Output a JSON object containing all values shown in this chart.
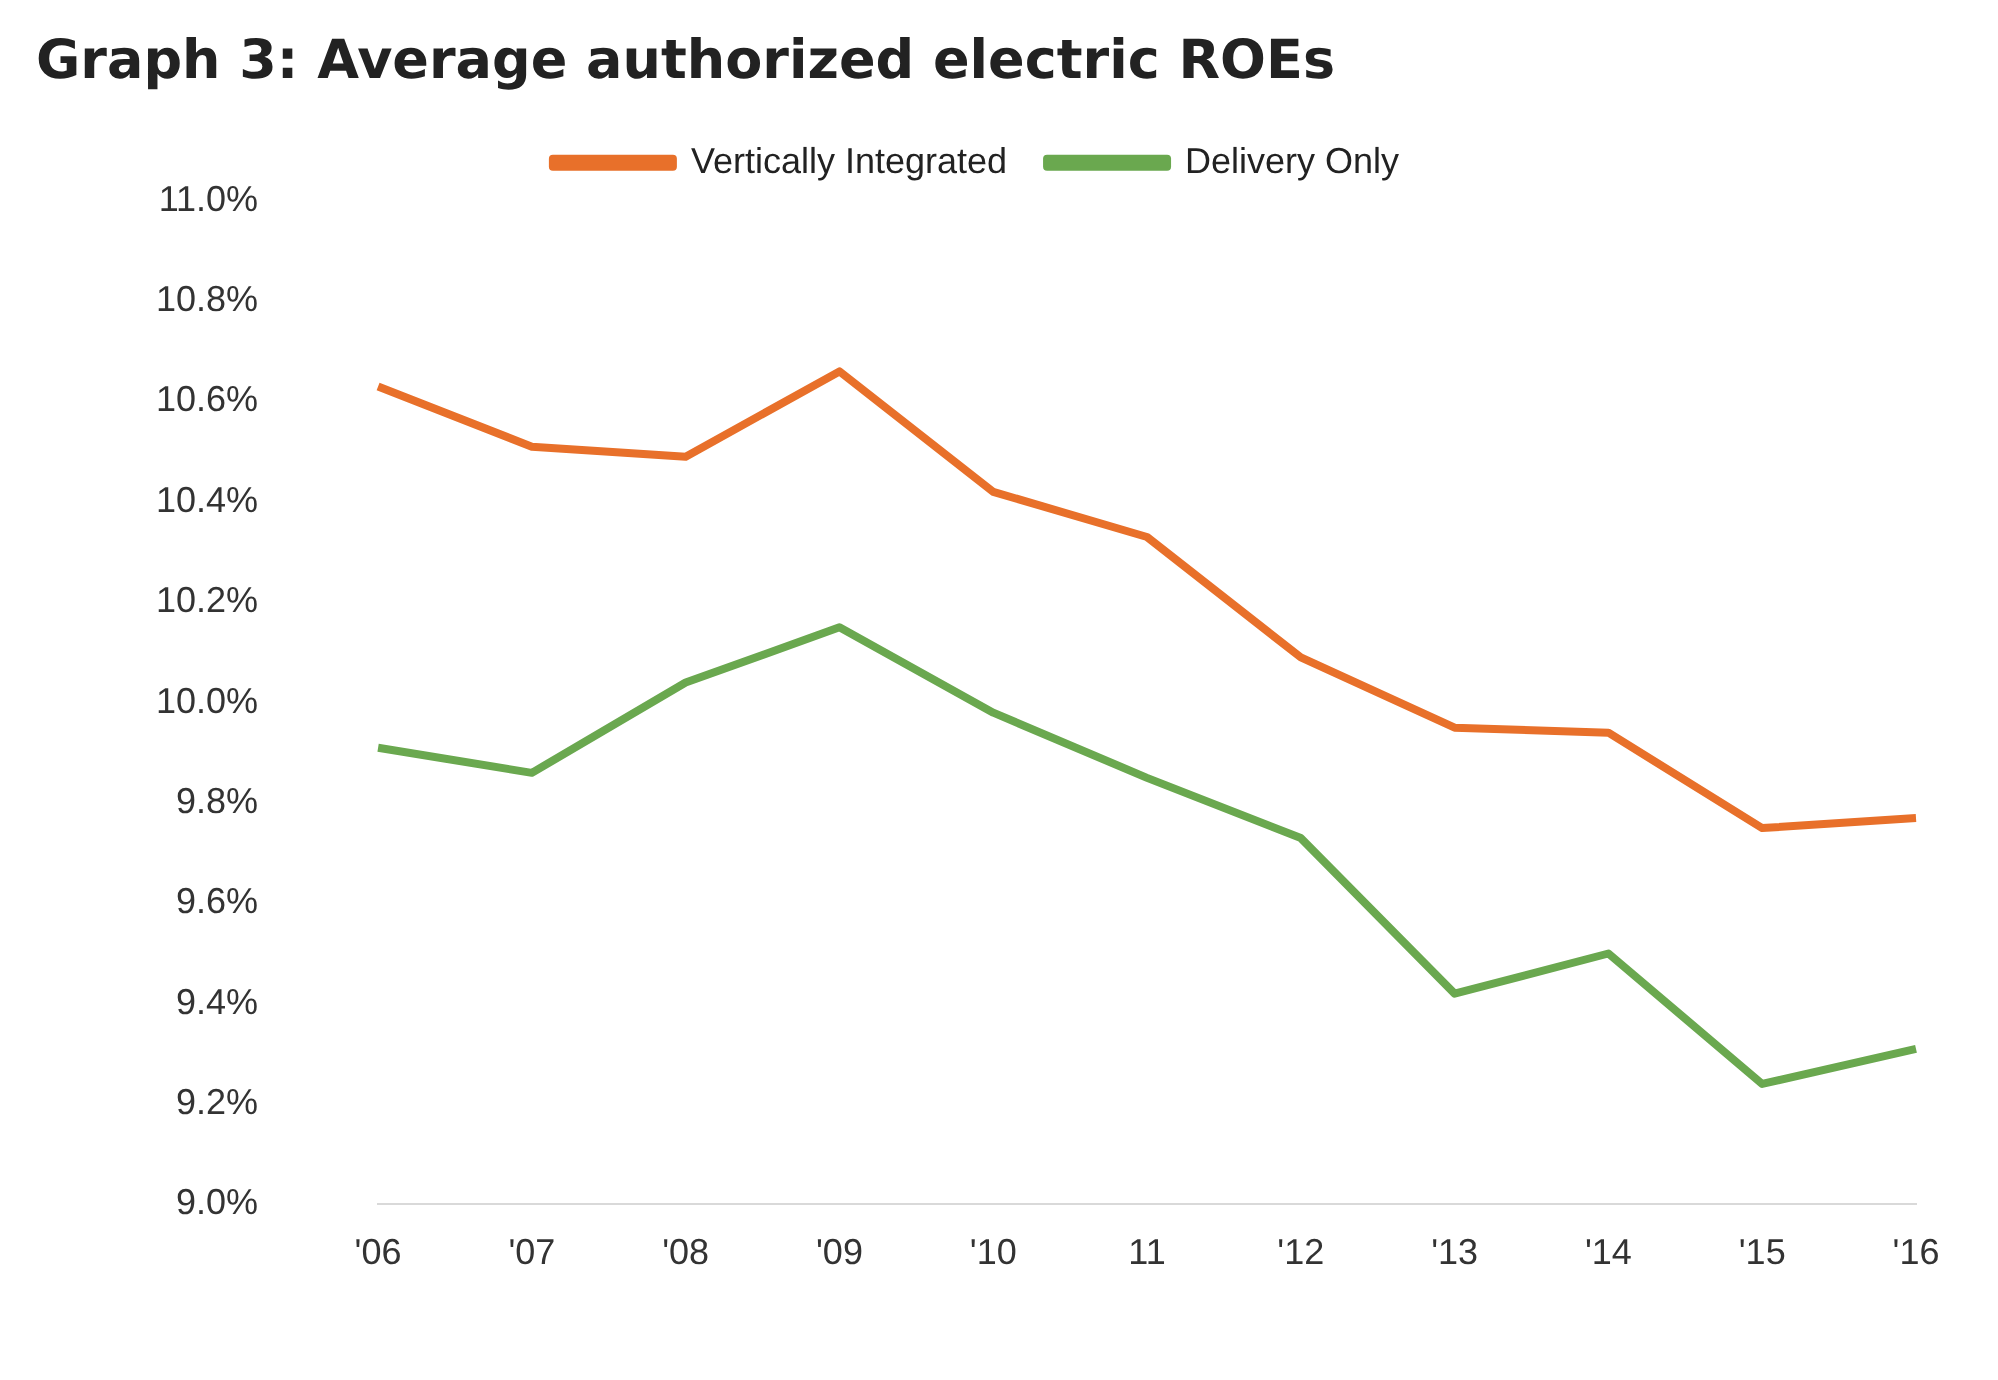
{
  "chart_data": {
    "type": "line",
    "title": "Graph 3: Average authorized electric ROEs",
    "categories": [
      "'06",
      "'07",
      "'08",
      "'09",
      "'10",
      "11",
      "'12",
      "'13",
      "'14",
      "'15",
      "'16"
    ],
    "series": [
      {
        "name": "Vertically Integrated",
        "color": "#e8702a",
        "values": [
          10.63,
          10.51,
          10.49,
          10.66,
          10.42,
          10.33,
          10.09,
          9.95,
          9.94,
          9.75,
          9.77
        ]
      },
      {
        "name": "Delivery Only",
        "color": "#6aa84f",
        "values": [
          9.91,
          9.86,
          10.04,
          10.15,
          9.98,
          9.85,
          9.73,
          9.42,
          9.5,
          9.24,
          9.31
        ]
      }
    ],
    "ylim": [
      9.0,
      11.0
    ],
    "yticks": [
      {
        "value": 9.0,
        "label": "9.0%"
      },
      {
        "value": 9.2,
        "label": "9.2%"
      },
      {
        "value": 9.4,
        "label": "9.4%"
      },
      {
        "value": 9.6,
        "label": "9.6%"
      },
      {
        "value": 9.8,
        "label": "9.8%"
      },
      {
        "value": 10.0,
        "label": "10.0%"
      },
      {
        "value": 10.2,
        "label": "10.2%"
      },
      {
        "value": 10.4,
        "label": "10.4%"
      },
      {
        "value": 10.6,
        "label": "10.6%"
      },
      {
        "value": 10.8,
        "label": "10.8%"
      },
      {
        "value": 11.0,
        "label": "11.0%"
      }
    ],
    "grid": false,
    "legend": "top",
    "marker": "none",
    "line_style": "solid"
  }
}
